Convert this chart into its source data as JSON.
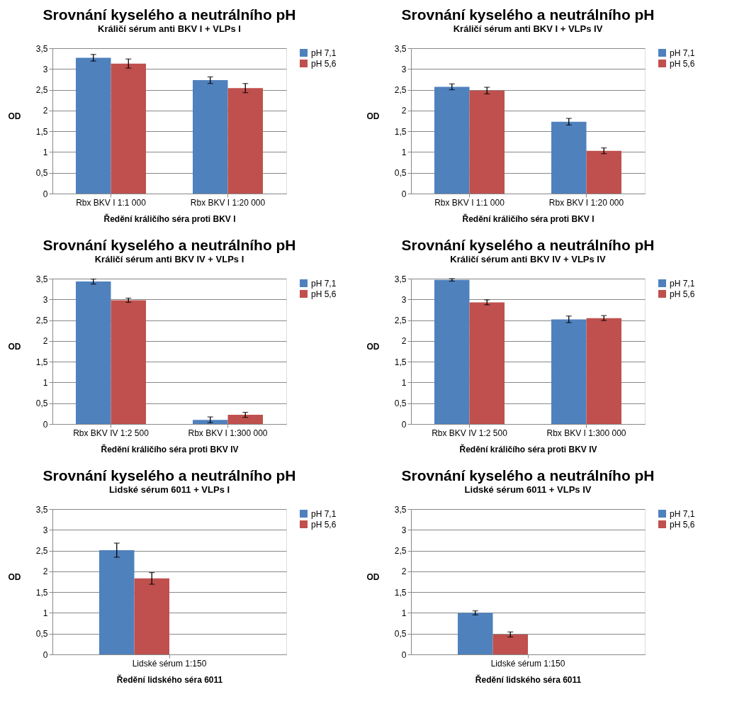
{
  "chart_data": [
    {
      "type": "bar",
      "title": "Srovnání kyselého a neutrálního pH",
      "subtitle": "Králičí sérum anti BKV I + VLPs I",
      "xlabel": "Ředění králičího  séra proti BKV I",
      "ylabel": "OD",
      "categories": [
        "Rbx BKV I 1:1 000",
        "Rbx BKV I 1:20 000"
      ],
      "series": [
        {
          "name": "pH 7,1",
          "color": "#4f81bd",
          "values": [
            3.27,
            2.73
          ],
          "errors": [
            0.08,
            0.08
          ]
        },
        {
          "name": "pH 5,6",
          "color": "#c0504d",
          "values": [
            3.13,
            2.54
          ],
          "errors": [
            0.11,
            0.11
          ]
        }
      ],
      "ylim": [
        0,
        3.5
      ],
      "yticks": [
        0,
        {
          "value": 0.5,
          "label": "0,5"
        },
        1,
        {
          "value": 1.5,
          "label": "1,5"
        },
        2,
        {
          "value": 2.5,
          "label": "2,5"
        },
        3,
        {
          "value": 3.5,
          "label": "3,5"
        }
      ],
      "grid": "y",
      "legend": "right"
    },
    {
      "type": "bar",
      "title": "Srovnání kyselého a neutrálního pH",
      "subtitle": "Králičí sérum anti BKV I + VLPs IV",
      "xlabel": "Ředění králičího  séra proti BKV I",
      "ylabel": "OD",
      "categories": [
        "Rbx BKV I 1:1 000",
        "Rbx BKV I 1:20 000"
      ],
      "series": [
        {
          "name": "pH 7,1",
          "color": "#4f81bd",
          "values": [
            2.57,
            1.73
          ],
          "errors": [
            0.07,
            0.08
          ]
        },
        {
          "name": "pH 5,6",
          "color": "#c0504d",
          "values": [
            2.48,
            1.03
          ],
          "errors": [
            0.08,
            0.07
          ]
        }
      ],
      "ylim": [
        0,
        3.5
      ],
      "yticks": [
        0,
        {
          "value": 0.5,
          "label": "0,5"
        },
        1,
        {
          "value": 1.5,
          "label": "1,5"
        },
        2,
        {
          "value": 2.5,
          "label": "2,5"
        },
        3,
        {
          "value": 3.5,
          "label": "3,5"
        }
      ],
      "grid": "y",
      "legend": "right"
    },
    {
      "type": "bar",
      "title": "Srovnání kyselého a neutrálního pH",
      "subtitle": "Králičí sérum anti BKV IV + VLPs I",
      "xlabel": "Ředění králičího  séra proti BKV IV",
      "ylabel": "OD",
      "categories": [
        "Rbx BKV IV 1:2 500",
        "Rbx BKV I 1:300 000"
      ],
      "series": [
        {
          "name": "pH 7,1",
          "color": "#4f81bd",
          "values": [
            3.43,
            0.1
          ],
          "errors": [
            0.06,
            0.07
          ]
        },
        {
          "name": "pH 5,6",
          "color": "#c0504d",
          "values": [
            2.98,
            0.22
          ],
          "errors": [
            0.05,
            0.06
          ]
        }
      ],
      "ylim": [
        0,
        3.5
      ],
      "yticks": [
        0,
        {
          "value": 0.5,
          "label": "0,5"
        },
        1,
        {
          "value": 1.5,
          "label": "1,5"
        },
        2,
        {
          "value": 2.5,
          "label": "2,5"
        },
        3,
        {
          "value": 3.5,
          "label": "3,5"
        }
      ],
      "grid": "y",
      "legend": "right"
    },
    {
      "type": "bar",
      "title": "Srovnání kyselého a neutrálního pH",
      "subtitle": "Králičí sérum anti BKV IV + VLPs IV",
      "xlabel": "Ředění králičího  séra proti BKV IV",
      "ylabel": "OD",
      "categories": [
        "Rbx BKV IV 1:2 500",
        "Rbx BKV I 1:300 000"
      ],
      "series": [
        {
          "name": "pH 7,1",
          "color": "#4f81bd",
          "values": [
            3.47,
            2.52
          ],
          "errors": [
            0.03,
            0.08
          ]
        },
        {
          "name": "pH 5,6",
          "color": "#c0504d",
          "values": [
            2.93,
            2.55
          ],
          "errors": [
            0.06,
            0.06
          ]
        }
      ],
      "ylim": [
        0,
        3.5
      ],
      "yticks": [
        0,
        {
          "value": 0.5,
          "label": "0,5"
        },
        1,
        {
          "value": 1.5,
          "label": "1,5"
        },
        2,
        {
          "value": 2.5,
          "label": "2,5"
        },
        3,
        {
          "value": 3.5,
          "label": "3,5"
        }
      ],
      "grid": "y",
      "legend": "right"
    },
    {
      "type": "bar",
      "title": "Srovnání kyselého a neutrálního pH",
      "subtitle": "Lidské sérum 6011 + VLPs I",
      "xlabel": "Ředění lidského séra 6011",
      "ylabel": "OD",
      "categories": [
        "Lidské sérum  1:150"
      ],
      "series": [
        {
          "name": "pH 7,1",
          "color": "#4f81bd",
          "values": [
            2.51
          ],
          "errors": [
            0.17
          ]
        },
        {
          "name": "pH 5,6",
          "color": "#c0504d",
          "values": [
            1.83
          ],
          "errors": [
            0.14
          ]
        }
      ],
      "ylim": [
        0,
        3.5
      ],
      "yticks": [
        0,
        {
          "value": 0.5,
          "label": "0,5"
        },
        1,
        {
          "value": 1.5,
          "label": "1,5"
        },
        2,
        {
          "value": 2.5,
          "label": "2,5"
        },
        3,
        {
          "value": 3.5,
          "label": "3,5"
        }
      ],
      "grid": "y",
      "legend": "right"
    },
    {
      "type": "bar",
      "title": "Srovnání kyselého a neutrálního pH",
      "subtitle": "Lidské sérum 6011 + VLPs IV",
      "xlabel": "Ředění lidského séra 6011",
      "ylabel": "OD",
      "categories": [
        "Lidské sérum 1:150"
      ],
      "series": [
        {
          "name": "pH 7,1",
          "color": "#4f81bd",
          "values": [
            1.0
          ],
          "errors": [
            0.05
          ]
        },
        {
          "name": "pH 5,6",
          "color": "#c0504d",
          "values": [
            0.48
          ],
          "errors": [
            0.06
          ]
        }
      ],
      "ylim": [
        0,
        3.5
      ],
      "yticks": [
        0,
        {
          "value": 0.5,
          "label": "0,5"
        },
        1,
        {
          "value": 1.5,
          "label": "1,5"
        },
        2,
        {
          "value": 2.5,
          "label": "2,5"
        },
        3,
        {
          "value": 3.5,
          "label": "3,5"
        }
      ],
      "grid": "y",
      "legend": "right"
    }
  ]
}
